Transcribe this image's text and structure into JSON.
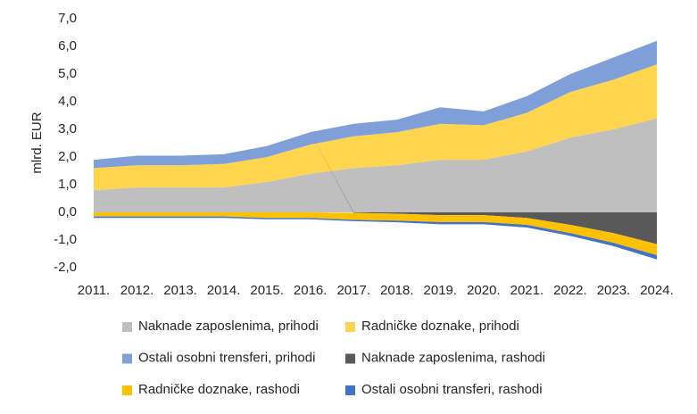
{
  "chart_data": {
    "type": "stacked-area",
    "y_label": "mlrd. EUR",
    "categories": [
      "2011.",
      "2012.",
      "2013.",
      "2014.",
      "2015.",
      "2016.",
      "2017.",
      "2018.",
      "2019.",
      "2020.",
      "2021.",
      "2022.",
      "2023.",
      "2024."
    ],
    "series": [
      {
        "name": "Naknade zaposlenima, prihodi",
        "color": "#bfbfbf",
        "values": [
          0.8,
          0.9,
          0.9,
          0.9,
          1.1,
          1.4,
          1.6,
          1.7,
          1.9,
          1.9,
          2.2,
          2.7,
          3.0,
          3.4
        ]
      },
      {
        "name": "Radničke doznake, prihodi",
        "color": "#ffd44f",
        "values": [
          0.8,
          0.8,
          0.8,
          0.85,
          0.9,
          1.05,
          1.15,
          1.2,
          1.3,
          1.25,
          1.4,
          1.65,
          1.8,
          1.95
        ]
      },
      {
        "name": "Ostali osobni trensferi, prihodi",
        "color": "#7f9fd8",
        "values": [
          0.3,
          0.35,
          0.35,
          0.35,
          0.4,
          0.45,
          0.45,
          0.45,
          0.6,
          0.5,
          0.6,
          0.65,
          0.8,
          0.85
        ]
      },
      {
        "name": "Naknade zaposlenima, rashodi",
        "color": "#595959",
        "values": [
          0,
          0,
          0,
          0,
          0,
          0,
          -0.02,
          -0.05,
          -0.1,
          -0.1,
          -0.2,
          -0.45,
          -0.75,
          -1.15
        ]
      },
      {
        "name": "Radničke doznake, rashodi",
        "color": "#ffc000",
        "values": [
          -0.15,
          -0.15,
          -0.15,
          -0.15,
          -0.2,
          -0.2,
          -0.25,
          -0.25,
          -0.25,
          -0.25,
          -0.25,
          -0.3,
          -0.35,
          -0.4
        ]
      },
      {
        "name": "Ostali osobni transferi, rashodi",
        "color": "#4472c4",
        "values": [
          -0.05,
          -0.05,
          -0.05,
          -0.05,
          -0.05,
          -0.05,
          -0.05,
          -0.06,
          -0.08,
          -0.08,
          -0.1,
          -0.1,
          -0.12,
          -0.15
        ]
      }
    ],
    "ylim": [
      -2,
      7
    ],
    "yticks": [
      {
        "value": -2,
        "label": "-2,0"
      },
      {
        "value": -1,
        "label": "-1,0"
      },
      {
        "value": 0,
        "label": "0,0"
      },
      {
        "value": 1,
        "label": "1,0"
      },
      {
        "value": 2,
        "label": "2,0"
      },
      {
        "value": 3,
        "label": "3,0"
      },
      {
        "value": 4,
        "label": "4,0"
      },
      {
        "value": 5,
        "label": "5,0"
      },
      {
        "value": 6,
        "label": "6,0"
      },
      {
        "value": 7,
        "label": "7,0"
      }
    ],
    "grid": false
  }
}
